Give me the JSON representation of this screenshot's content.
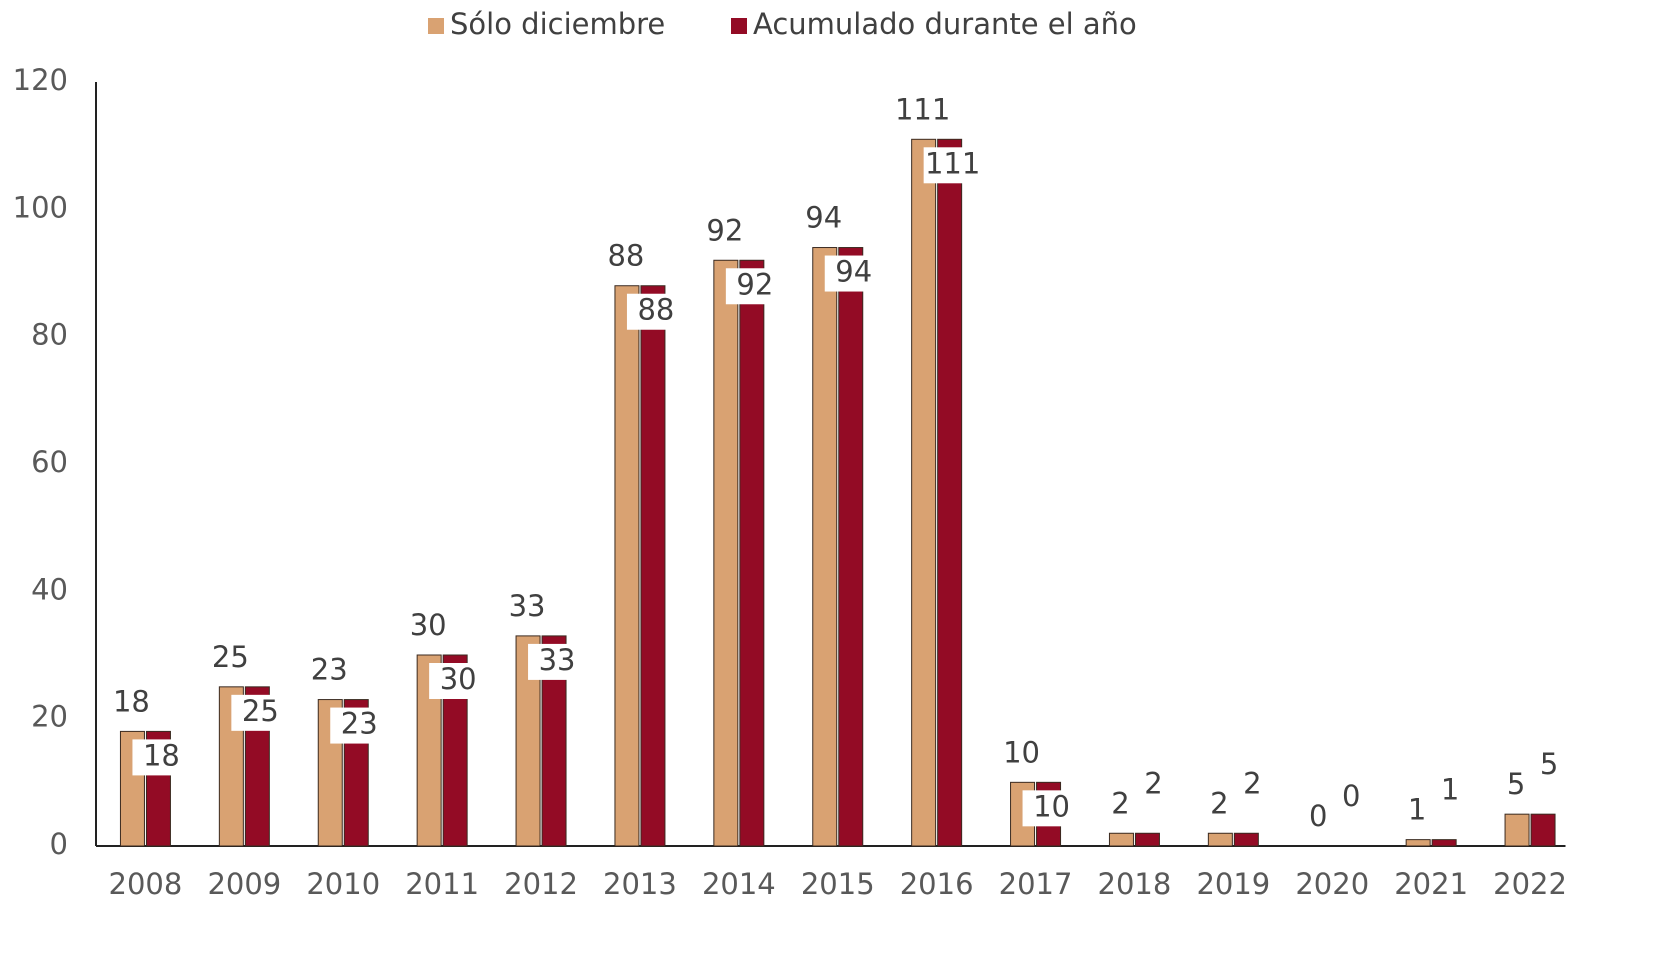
{
  "chart_data": {
    "type": "bar",
    "categories": [
      "2008",
      "2009",
      "2010",
      "2011",
      "2012",
      "2013",
      "2014",
      "2015",
      "2016",
      "2017",
      "2018",
      "2019",
      "2020",
      "2021",
      "2022"
    ],
    "series": [
      {
        "name": "Sólo diciembre",
        "color": "#d9a272",
        "values": [
          18,
          25,
          23,
          30,
          33,
          88,
          92,
          94,
          111,
          10,
          2,
          2,
          0,
          1,
          5
        ]
      },
      {
        "name": "Acumulado durante el año",
        "color": "#930b25",
        "values": [
          18,
          25,
          23,
          30,
          33,
          88,
          92,
          94,
          111,
          10,
          2,
          2,
          0,
          1,
          5
        ]
      }
    ],
    "ylim": [
      0,
      120
    ],
    "yticks": [
      0,
      20,
      40,
      60,
      80,
      100,
      120
    ],
    "grid": false,
    "legend": "top"
  }
}
